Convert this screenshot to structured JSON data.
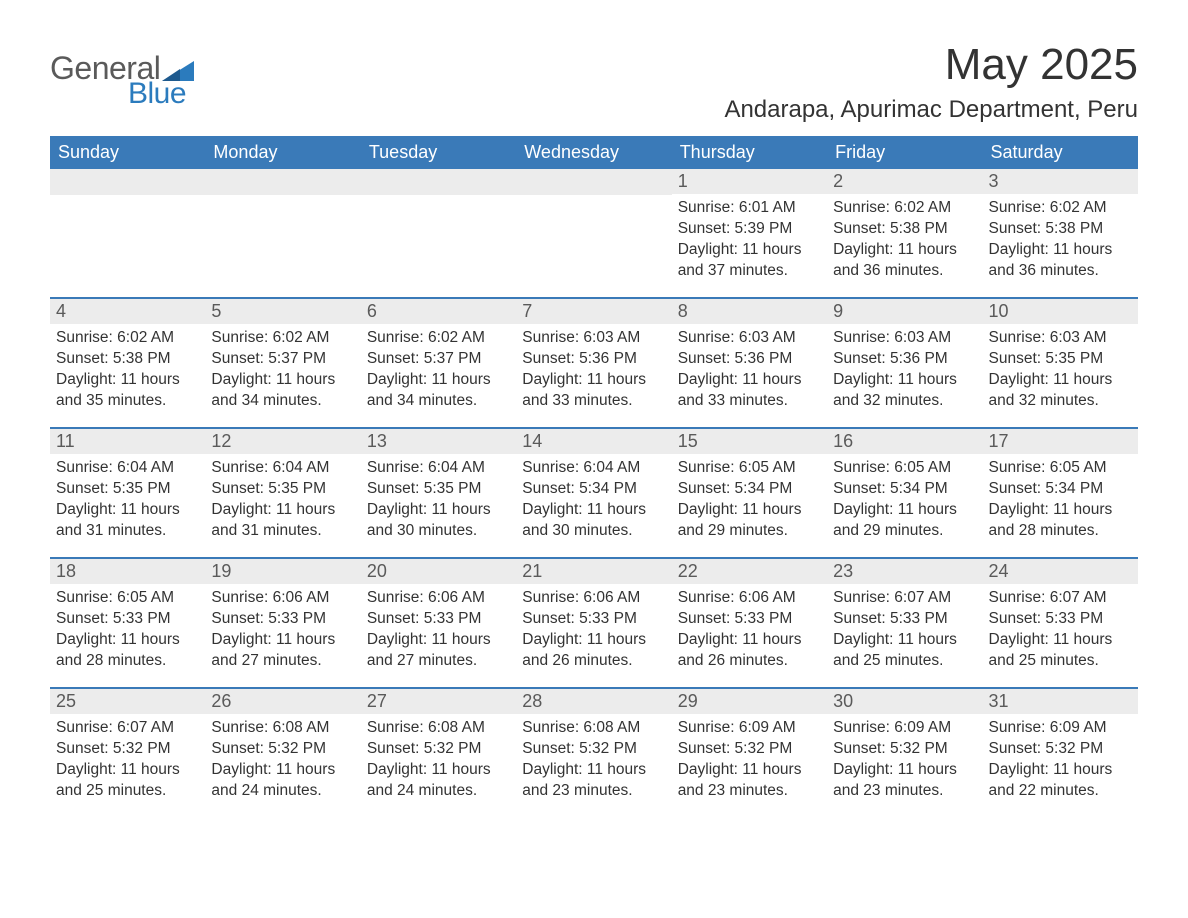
{
  "logo": {
    "text1": "General",
    "text2": "Blue"
  },
  "title": "May 2025",
  "location": "Andarapa, Apurimac Department, Peru",
  "colors": {
    "header_bg": "#3a7ab8",
    "header_text": "#ffffff",
    "daynum_bg": "#ececec",
    "daynum_text": "#5a5a5a",
    "body_text": "#333333",
    "rule": "#3a7ab8",
    "logo_gray": "#5a5a5a",
    "logo_blue": "#2b7bbd"
  },
  "weekdays": [
    "Sunday",
    "Monday",
    "Tuesday",
    "Wednesday",
    "Thursday",
    "Friday",
    "Saturday"
  ],
  "weeks": [
    [
      {
        "n": "",
        "sr": "",
        "ss": "",
        "dl": ""
      },
      {
        "n": "",
        "sr": "",
        "ss": "",
        "dl": ""
      },
      {
        "n": "",
        "sr": "",
        "ss": "",
        "dl": ""
      },
      {
        "n": "",
        "sr": "",
        "ss": "",
        "dl": ""
      },
      {
        "n": "1",
        "sr": "Sunrise: 6:01 AM",
        "ss": "Sunset: 5:39 PM",
        "dl": "Daylight: 11 hours and 37 minutes."
      },
      {
        "n": "2",
        "sr": "Sunrise: 6:02 AM",
        "ss": "Sunset: 5:38 PM",
        "dl": "Daylight: 11 hours and 36 minutes."
      },
      {
        "n": "3",
        "sr": "Sunrise: 6:02 AM",
        "ss": "Sunset: 5:38 PM",
        "dl": "Daylight: 11 hours and 36 minutes."
      }
    ],
    [
      {
        "n": "4",
        "sr": "Sunrise: 6:02 AM",
        "ss": "Sunset: 5:38 PM",
        "dl": "Daylight: 11 hours and 35 minutes."
      },
      {
        "n": "5",
        "sr": "Sunrise: 6:02 AM",
        "ss": "Sunset: 5:37 PM",
        "dl": "Daylight: 11 hours and 34 minutes."
      },
      {
        "n": "6",
        "sr": "Sunrise: 6:02 AM",
        "ss": "Sunset: 5:37 PM",
        "dl": "Daylight: 11 hours and 34 minutes."
      },
      {
        "n": "7",
        "sr": "Sunrise: 6:03 AM",
        "ss": "Sunset: 5:36 PM",
        "dl": "Daylight: 11 hours and 33 minutes."
      },
      {
        "n": "8",
        "sr": "Sunrise: 6:03 AM",
        "ss": "Sunset: 5:36 PM",
        "dl": "Daylight: 11 hours and 33 minutes."
      },
      {
        "n": "9",
        "sr": "Sunrise: 6:03 AM",
        "ss": "Sunset: 5:36 PM",
        "dl": "Daylight: 11 hours and 32 minutes."
      },
      {
        "n": "10",
        "sr": "Sunrise: 6:03 AM",
        "ss": "Sunset: 5:35 PM",
        "dl": "Daylight: 11 hours and 32 minutes."
      }
    ],
    [
      {
        "n": "11",
        "sr": "Sunrise: 6:04 AM",
        "ss": "Sunset: 5:35 PM",
        "dl": "Daylight: 11 hours and 31 minutes."
      },
      {
        "n": "12",
        "sr": "Sunrise: 6:04 AM",
        "ss": "Sunset: 5:35 PM",
        "dl": "Daylight: 11 hours and 31 minutes."
      },
      {
        "n": "13",
        "sr": "Sunrise: 6:04 AM",
        "ss": "Sunset: 5:35 PM",
        "dl": "Daylight: 11 hours and 30 minutes."
      },
      {
        "n": "14",
        "sr": "Sunrise: 6:04 AM",
        "ss": "Sunset: 5:34 PM",
        "dl": "Daylight: 11 hours and 30 minutes."
      },
      {
        "n": "15",
        "sr": "Sunrise: 6:05 AM",
        "ss": "Sunset: 5:34 PM",
        "dl": "Daylight: 11 hours and 29 minutes."
      },
      {
        "n": "16",
        "sr": "Sunrise: 6:05 AM",
        "ss": "Sunset: 5:34 PM",
        "dl": "Daylight: 11 hours and 29 minutes."
      },
      {
        "n": "17",
        "sr": "Sunrise: 6:05 AM",
        "ss": "Sunset: 5:34 PM",
        "dl": "Daylight: 11 hours and 28 minutes."
      }
    ],
    [
      {
        "n": "18",
        "sr": "Sunrise: 6:05 AM",
        "ss": "Sunset: 5:33 PM",
        "dl": "Daylight: 11 hours and 28 minutes."
      },
      {
        "n": "19",
        "sr": "Sunrise: 6:06 AM",
        "ss": "Sunset: 5:33 PM",
        "dl": "Daylight: 11 hours and 27 minutes."
      },
      {
        "n": "20",
        "sr": "Sunrise: 6:06 AM",
        "ss": "Sunset: 5:33 PM",
        "dl": "Daylight: 11 hours and 27 minutes."
      },
      {
        "n": "21",
        "sr": "Sunrise: 6:06 AM",
        "ss": "Sunset: 5:33 PM",
        "dl": "Daylight: 11 hours and 26 minutes."
      },
      {
        "n": "22",
        "sr": "Sunrise: 6:06 AM",
        "ss": "Sunset: 5:33 PM",
        "dl": "Daylight: 11 hours and 26 minutes."
      },
      {
        "n": "23",
        "sr": "Sunrise: 6:07 AM",
        "ss": "Sunset: 5:33 PM",
        "dl": "Daylight: 11 hours and 25 minutes."
      },
      {
        "n": "24",
        "sr": "Sunrise: 6:07 AM",
        "ss": "Sunset: 5:33 PM",
        "dl": "Daylight: 11 hours and 25 minutes."
      }
    ],
    [
      {
        "n": "25",
        "sr": "Sunrise: 6:07 AM",
        "ss": "Sunset: 5:32 PM",
        "dl": "Daylight: 11 hours and 25 minutes."
      },
      {
        "n": "26",
        "sr": "Sunrise: 6:08 AM",
        "ss": "Sunset: 5:32 PM",
        "dl": "Daylight: 11 hours and 24 minutes."
      },
      {
        "n": "27",
        "sr": "Sunrise: 6:08 AM",
        "ss": "Sunset: 5:32 PM",
        "dl": "Daylight: 11 hours and 24 minutes."
      },
      {
        "n": "28",
        "sr": "Sunrise: 6:08 AM",
        "ss": "Sunset: 5:32 PM",
        "dl": "Daylight: 11 hours and 23 minutes."
      },
      {
        "n": "29",
        "sr": "Sunrise: 6:09 AM",
        "ss": "Sunset: 5:32 PM",
        "dl": "Daylight: 11 hours and 23 minutes."
      },
      {
        "n": "30",
        "sr": "Sunrise: 6:09 AM",
        "ss": "Sunset: 5:32 PM",
        "dl": "Daylight: 11 hours and 23 minutes."
      },
      {
        "n": "31",
        "sr": "Sunrise: 6:09 AM",
        "ss": "Sunset: 5:32 PM",
        "dl": "Daylight: 11 hours and 22 minutes."
      }
    ]
  ]
}
